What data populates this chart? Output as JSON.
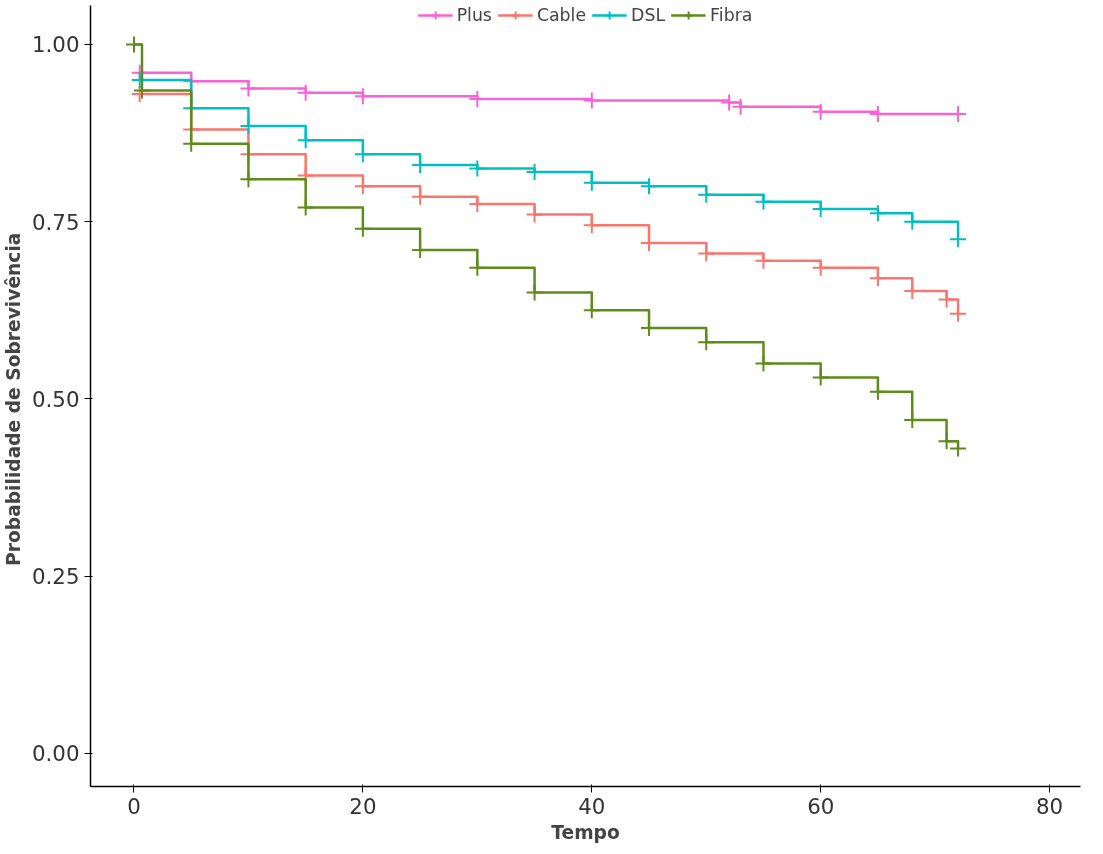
{
  "chart_data": {
    "type": "step",
    "xlabel": "Tempo",
    "ylabel": "Probabilidade  de Sobrevivência",
    "xlim": [
      -3.8,
      82.7
    ],
    "ylim": [
      -0.047,
      1.055
    ],
    "xticks": [
      0,
      20,
      40,
      60,
      80
    ],
    "yticks": [
      {
        "value": 0,
        "label": "0.00"
      },
      {
        "value": 0.25,
        "label": "0.25"
      },
      {
        "value": 0.5,
        "label": "0.50"
      },
      {
        "value": 0.75,
        "label": "0.75"
      },
      {
        "value": 1,
        "label": "1.00"
      }
    ],
    "grid": false,
    "legend": "top",
    "marker": "cross",
    "line_style": "solid",
    "series": [
      {
        "name": "Plus",
        "color": "#fb61d7",
        "x": [
          0.5,
          5,
          10,
          15,
          20,
          30,
          40,
          52,
          53,
          60,
          65,
          72
        ],
        "values": [
          0.96,
          0.948,
          0.938,
          0.932,
          0.927,
          0.923,
          0.921,
          0.918,
          0.912,
          0.905,
          0.902,
          0.902
        ]
      },
      {
        "name": "Cable",
        "color": "#f8766d",
        "x": [
          0.5,
          5,
          10,
          15,
          20,
          25,
          30,
          35,
          40,
          45,
          50,
          55,
          60,
          65,
          68,
          71,
          72
        ],
        "values": [
          0.93,
          0.88,
          0.845,
          0.815,
          0.8,
          0.785,
          0.775,
          0.76,
          0.745,
          0.72,
          0.705,
          0.695,
          0.685,
          0.67,
          0.652,
          0.64,
          0.62
        ]
      },
      {
        "name": "DSL",
        "color": "#00bfc4",
        "x": [
          0.5,
          5,
          10,
          15,
          20,
          25,
          30,
          35,
          40,
          45,
          50,
          55,
          60,
          65,
          68,
          72
        ],
        "values": [
          0.95,
          0.91,
          0.885,
          0.865,
          0.845,
          0.83,
          0.825,
          0.82,
          0.805,
          0.8,
          0.788,
          0.778,
          0.768,
          0.762,
          0.75,
          0.725
        ]
      },
      {
        "name": "Fibra",
        "color": "#5e8c1a",
        "x": [
          0,
          0.7,
          5,
          10,
          15,
          20,
          25,
          30,
          35,
          40,
          45,
          50,
          55,
          60,
          65,
          68,
          71,
          72
        ],
        "values": [
          1.0,
          0.935,
          0.86,
          0.81,
          0.77,
          0.74,
          0.71,
          0.685,
          0.65,
          0.625,
          0.6,
          0.58,
          0.55,
          0.53,
          0.51,
          0.47,
          0.44,
          0.43
        ]
      }
    ]
  }
}
